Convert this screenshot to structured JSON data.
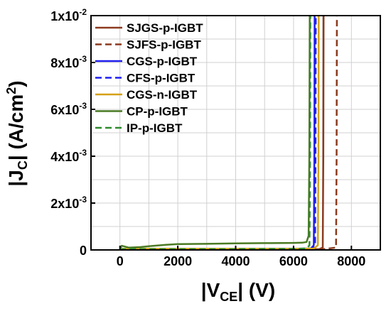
{
  "chart_data": {
    "type": "line",
    "xlabel": {
      "main": "|V",
      "sub": "CE",
      "tail": "| (V)"
    },
    "ylabel": {
      "main": "|J",
      "sub": "C",
      "mid": "| (A/cm",
      "sup": "2",
      "tail": ")"
    },
    "xlim": [
      -1000,
      9000
    ],
    "ylim": [
      0,
      0.01
    ],
    "x_ticks": [
      {
        "value": 0,
        "label": "0"
      },
      {
        "value": 2000,
        "label": "2000"
      },
      {
        "value": 4000,
        "label": "4000"
      },
      {
        "value": 6000,
        "label": "6000"
      },
      {
        "value": 8000,
        "label": "8000"
      }
    ],
    "y_ticks": [
      {
        "value": 0,
        "label": "0",
        "mant": "",
        "exp": ""
      },
      {
        "value": 0.002,
        "label": "",
        "mant": "2x10",
        "exp": "-3"
      },
      {
        "value": 0.004,
        "label": "",
        "mant": "4x10",
        "exp": "-3"
      },
      {
        "value": 0.006,
        "label": "",
        "mant": "6x10",
        "exp": "-3"
      },
      {
        "value": 0.008,
        "label": "",
        "mant": "8x10",
        "exp": "-3"
      },
      {
        "value": 0.01,
        "label": "",
        "mant": "1x10",
        "exp": "-2"
      }
    ],
    "grid": true,
    "legend_position": "top-right",
    "series": [
      {
        "name": "SJGS-p-IGBT",
        "color": "#8B3A1E",
        "dash": "solid",
        "x": [
          0,
          40,
          200,
          1000,
          2000,
          4000,
          6000,
          6900,
          7010,
          7030,
          7040
        ],
        "y": [
          0,
          3e-05,
          3e-05,
          3e-05,
          3e-05,
          3e-05,
          3e-05,
          4e-05,
          0.0001,
          0.004,
          0.01
        ]
      },
      {
        "name": "SJFS-p-IGBT",
        "color": "#8B3A1E",
        "dash": "dashed",
        "x": [
          0,
          40,
          200,
          2000,
          4000,
          6000,
          7000,
          7470,
          7490,
          7500
        ],
        "y": [
          0,
          3e-05,
          3e-05,
          3e-05,
          3e-05,
          3e-05,
          3e-05,
          0.0001,
          0.004,
          0.01
        ]
      },
      {
        "name": "CGS-p-IGBT",
        "color": "#1F1FEE",
        "dash": "solid",
        "x": [
          0,
          40,
          200,
          2000,
          4000,
          6000,
          6600,
          6700,
          6720,
          6730
        ],
        "y": [
          0,
          4e-05,
          4e-05,
          4e-05,
          4e-05,
          5e-05,
          6e-05,
          0.0002,
          0.004,
          0.01
        ]
      },
      {
        "name": "CFS-p-IGBT",
        "color": "#1F1FEE",
        "dash": "dashed",
        "x": [
          0,
          40,
          200,
          2000,
          4000,
          6000,
          6650,
          6745,
          6760,
          6770
        ],
        "y": [
          0,
          4e-05,
          4e-05,
          4e-05,
          4e-05,
          5e-05,
          6e-05,
          0.0002,
          0.004,
          0.01
        ]
      },
      {
        "name": "CGS-n-IGBT",
        "color": "#D4A017",
        "dash": "solid",
        "x": [
          0,
          40,
          200,
          2000,
          4000,
          6000,
          6700,
          6840,
          6860,
          6870
        ],
        "y": [
          0,
          5e-05,
          5e-05,
          5e-05,
          5e-05,
          5e-05,
          6e-05,
          0.0002,
          0.004,
          0.01
        ]
      },
      {
        "name": "CP-p-IGBT",
        "color": "#4A7A23",
        "dash": "solid",
        "x": [
          0,
          60,
          300,
          700,
          1000,
          1600,
          2000,
          3000,
          4000,
          5000,
          6000,
          6300,
          6450,
          6520,
          6545,
          6560
        ],
        "y": [
          0,
          0.00018,
          0.0001,
          0.00012,
          0.00016,
          0.00022,
          0.00025,
          0.00026,
          0.00028,
          0.00029,
          0.0003,
          0.00031,
          0.00034,
          0.0006,
          0.004,
          0.01
        ]
      },
      {
        "name": "IP-p-IGBT",
        "color": "#2E8B2E",
        "dash": "dashed",
        "x": [
          0,
          40,
          200,
          2000,
          4000,
          6000,
          6450,
          6550,
          6570,
          6580
        ],
        "y": [
          0,
          4e-05,
          4e-05,
          4e-05,
          4e-05,
          5e-05,
          6e-05,
          0.0002,
          0.004,
          0.01
        ]
      }
    ]
  }
}
